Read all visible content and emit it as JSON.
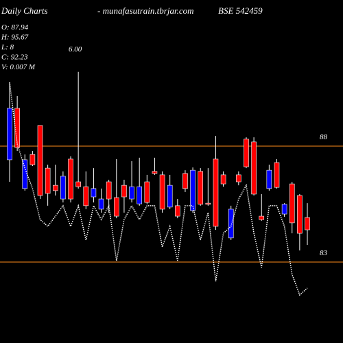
{
  "chart_data": {
    "type": "candlestick",
    "title": "Daily Charts",
    "subtitle": "- munafasutrain.tbrjar.com",
    "symbol": "BSE 542459",
    "info": [
      "O: 87.94",
      "H: 95.67",
      "L: 8",
      "C: 92.23",
      "V: 0.007 M"
    ],
    "annotation": "6.00",
    "open": [
      87.41,
      89.63,
      86.17,
      87.64,
      88.89,
      87.05,
      86.31,
      85.72,
      87.44,
      86.46,
      86.25,
      85.81,
      85.28,
      86.46,
      85.78,
      86.31,
      85.72,
      85.51,
      86.46,
      86.91,
      86.76,
      85.37,
      85.43,
      86.82,
      85.22,
      86.91,
      85.54,
      87.44,
      86.76,
      84.04,
      86.76,
      88.3,
      88.18,
      84.98,
      86.17,
      87.29,
      85.07,
      86.37,
      85.87,
      84.92
    ],
    "high": [
      90.75,
      90.16,
      87.64,
      87.79,
      88.89,
      87.2,
      87.2,
      86.91,
      87.56,
      91.2,
      86.91,
      87.05,
      86.17,
      86.55,
      87.44,
      86.55,
      87.35,
      87.5,
      86.76,
      87.5,
      86.91,
      86.76,
      85.72,
      86.96,
      87.08,
      87.05,
      87.05,
      88.44,
      86.91,
      85.43,
      86.91,
      88.38,
      88.38,
      85.93,
      87.2,
      87.44,
      85.54,
      86.46,
      85.93,
      85.54
    ],
    "low": [
      86.46,
      87.79,
      86.08,
      87.14,
      85.72,
      85.43,
      85.87,
      85.57,
      85.57,
      86.17,
      85.28,
      85.57,
      85.13,
      85.13,
      84.89,
      85.13,
      85.57,
      85.43,
      85.49,
      86.76,
      85.13,
      85.28,
      84.89,
      86.02,
      85.13,
      85.43,
      85.43,
      84.39,
      86.25,
      83.95,
      86.31,
      87.05,
      85.87,
      84.78,
      86.08,
      86.17,
      84.95,
      84.24,
      83.5,
      83.74
    ],
    "close": [
      89.63,
      87.94,
      87.41,
      87.2,
      85.87,
      85.96,
      86.08,
      86.7,
      85.72,
      86.25,
      85.43,
      86.17,
      85.72,
      85.72,
      84.98,
      85.81,
      86.25,
      86.25,
      85.57,
      86.82,
      85.28,
      86.31,
      84.98,
      86.17,
      86.96,
      85.49,
      85.49,
      84.54,
      86.37,
      85.28,
      86.46,
      87.11,
      85.93,
      84.83,
      86.96,
      86.22,
      85.49,
      84.69,
      84.24,
      84.39
    ],
    "average": [
      90.75,
      88.09,
      87.05,
      86.17,
      84.83,
      84.54,
      84.98,
      85.43,
      84.54,
      85.43,
      83.95,
      85.43,
      84.83,
      85.43,
      83.06,
      84.83,
      85.43,
      84.83,
      85.43,
      85.43,
      83.65,
      84.54,
      83.06,
      85.43,
      85.43,
      83.95,
      85.13,
      82.17,
      84.24,
      84.54,
      85.72,
      86.31,
      84.24,
      82.76,
      85.43,
      85.43,
      84.54,
      82.47,
      81.58,
      81.88
    ],
    "up_color": "#0000ff",
    "down_color": "#ff0000",
    "line_color": "#ffffff",
    "grid_color": "#ff8c1a",
    "ylim": [
      79.51,
      94.3
    ],
    "yticks": [
      88,
      83
    ],
    "grid": true
  }
}
